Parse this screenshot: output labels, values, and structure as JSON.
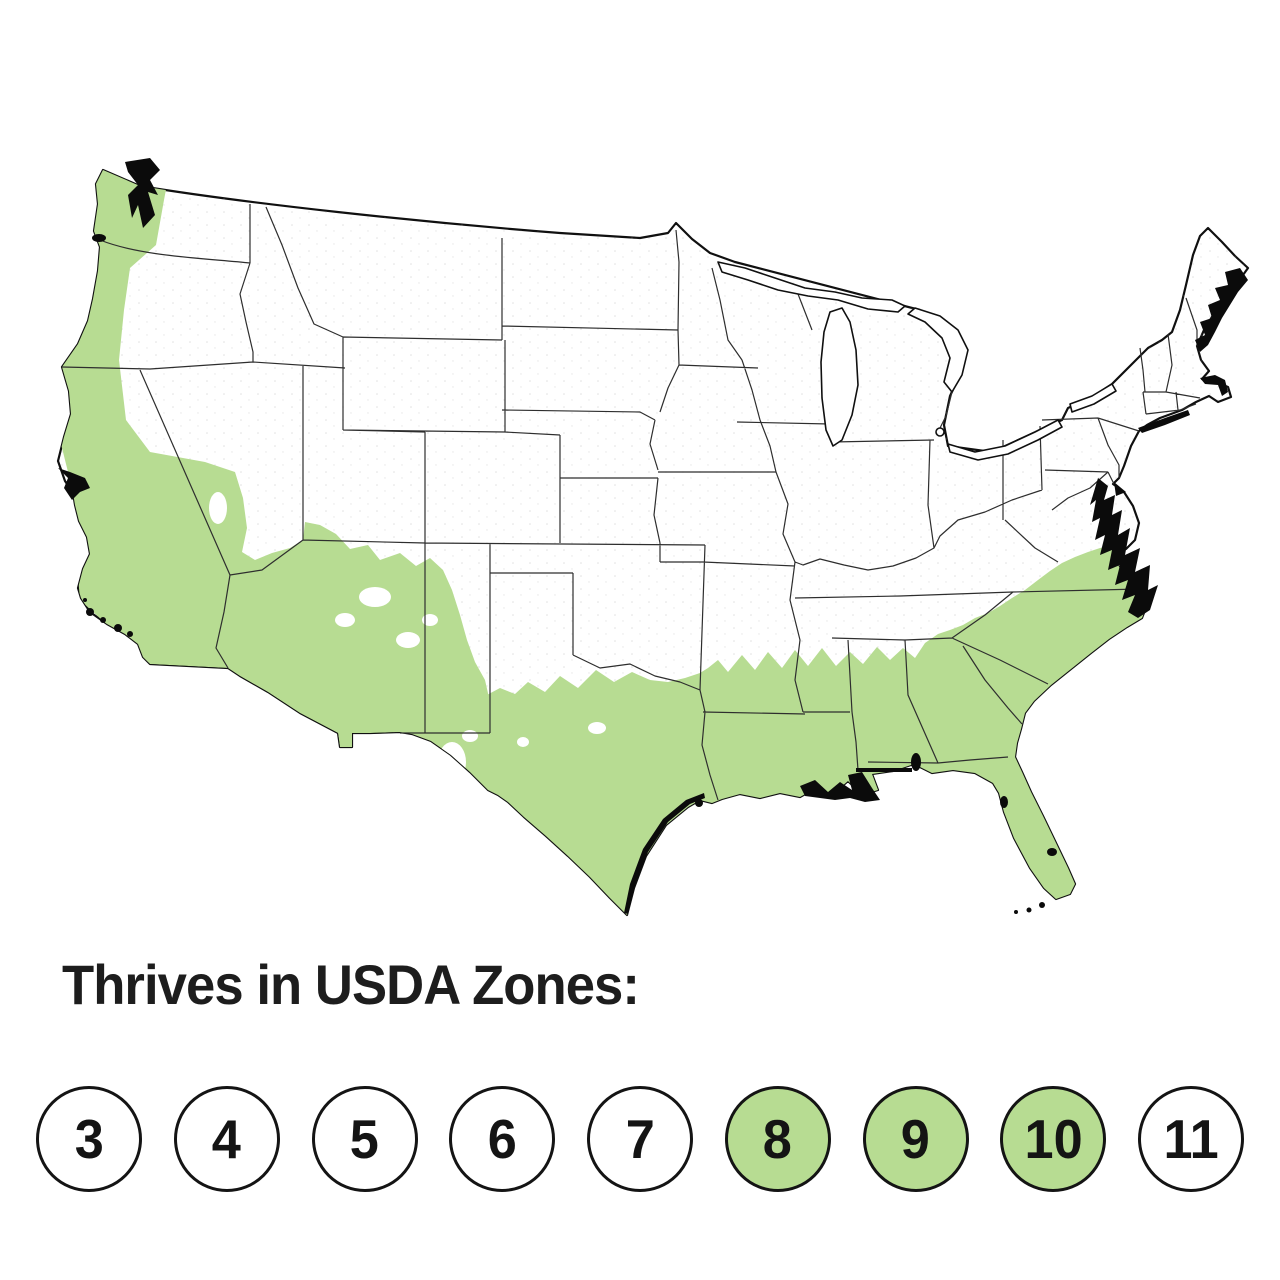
{
  "page": {
    "background_color": "#ffffff"
  },
  "map": {
    "description": "United States map with USDA plant hardiness zones 8 through 10 shaded green",
    "highlighted_zones": [
      "8",
      "9",
      "10"
    ],
    "highlight_color": "#b7dc92",
    "land_color": "#ffffff",
    "outline_color": "#101010",
    "state_line_color": "#2e2e2e",
    "water_feature_color": "#0b0b0b"
  },
  "legend": {
    "title": "Thrives in USDA Zones:",
    "highlight_color": "#b7dc92",
    "circle_border_color": "#141414",
    "zones": [
      {
        "label": "3",
        "highlighted": false
      },
      {
        "label": "4",
        "highlighted": false
      },
      {
        "label": "5",
        "highlighted": false
      },
      {
        "label": "6",
        "highlighted": false
      },
      {
        "label": "7",
        "highlighted": false
      },
      {
        "label": "8",
        "highlighted": true
      },
      {
        "label": "9",
        "highlighted": true
      },
      {
        "label": "10",
        "highlighted": true
      },
      {
        "label": "11",
        "highlighted": false
      }
    ]
  }
}
